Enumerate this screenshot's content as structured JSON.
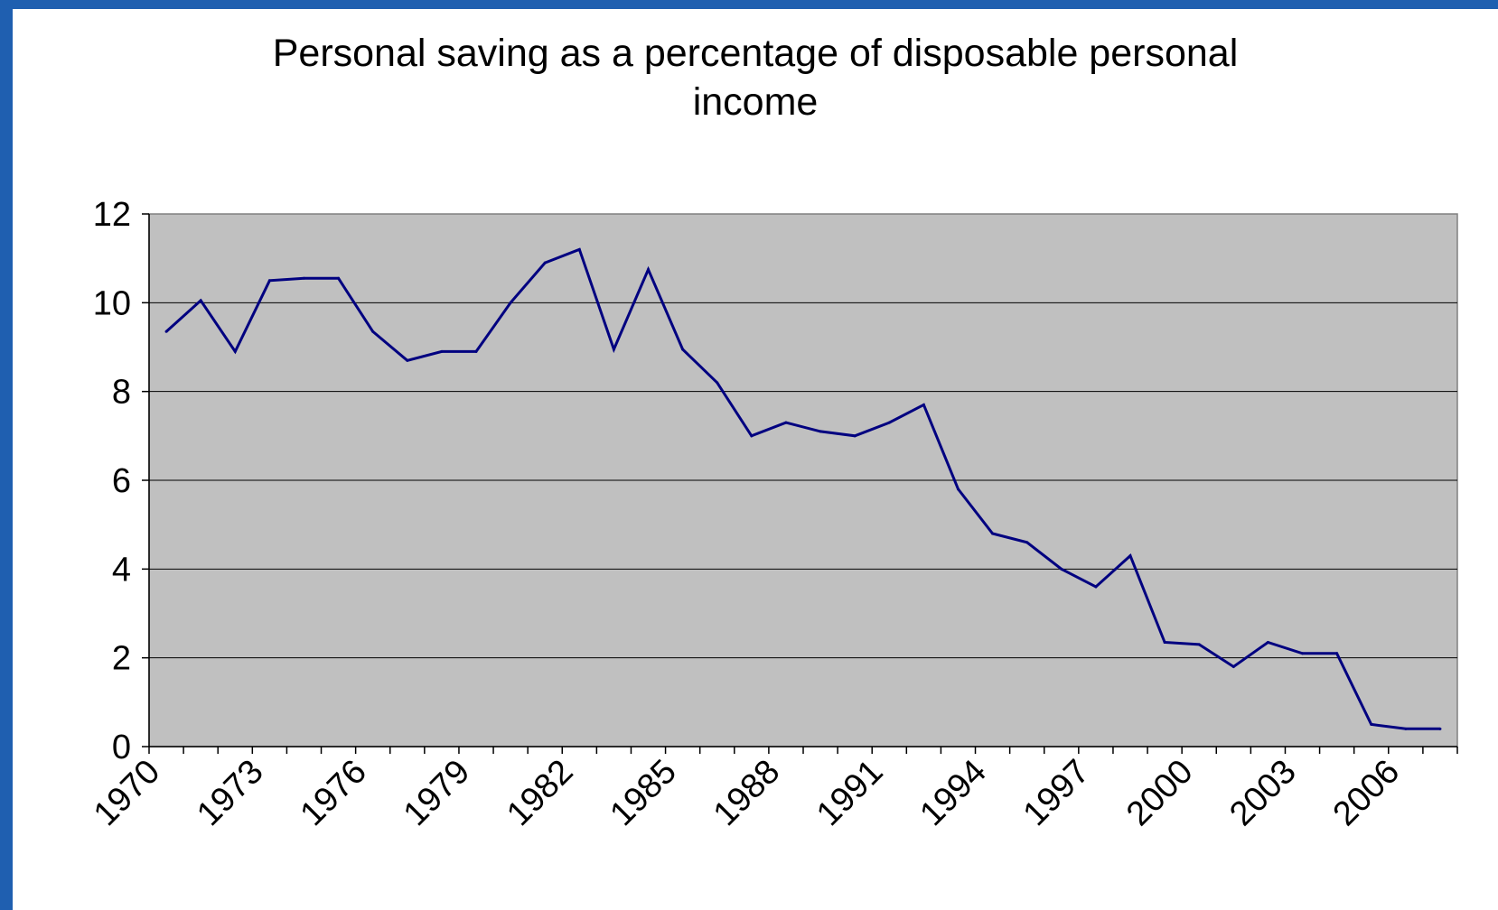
{
  "colors": {
    "background": "#1f5fb0",
    "panel": "#ffffff",
    "plot_area": "#c0c0c0",
    "line": "#000080",
    "gridline": "#000000"
  },
  "chart_data": {
    "type": "line",
    "title_lines": [
      "Personal saving as a percentage of disposable personal",
      "income"
    ],
    "xlabel": "",
    "ylabel": "",
    "ylim": [
      0,
      12
    ],
    "y_ticks": [
      0,
      2,
      4,
      6,
      8,
      10,
      12
    ],
    "x_tick_labels": [
      "1970",
      "1973",
      "1976",
      "1979",
      "1982",
      "1985",
      "1988",
      "1991",
      "1994",
      "1997",
      "2000",
      "2003",
      "2006"
    ],
    "categories": [
      1970,
      1971,
      1972,
      1973,
      1974,
      1975,
      1976,
      1977,
      1978,
      1979,
      1980,
      1981,
      1982,
      1983,
      1984,
      1985,
      1986,
      1987,
      1988,
      1989,
      1990,
      1991,
      1992,
      1993,
      1994,
      1995,
      1996,
      1997,
      1998,
      1999,
      2000,
      2001,
      2002,
      2003,
      2004,
      2005,
      2006,
      2007
    ],
    "series": [
      {
        "values": [
          9.35,
          10.05,
          8.9,
          10.5,
          10.55,
          10.55,
          9.35,
          8.7,
          8.9,
          8.9,
          10.0,
          10.9,
          11.2,
          8.95,
          10.75,
          8.95,
          8.2,
          7.0,
          7.3,
          7.1,
          7.0,
          7.3,
          7.7,
          5.8,
          4.8,
          4.6,
          4.0,
          3.6,
          4.3,
          2.35,
          2.3,
          1.8,
          2.35,
          2.1,
          2.1,
          0.5,
          0.4,
          0.4
        ]
      }
    ],
    "grid": true,
    "legend": "none"
  }
}
